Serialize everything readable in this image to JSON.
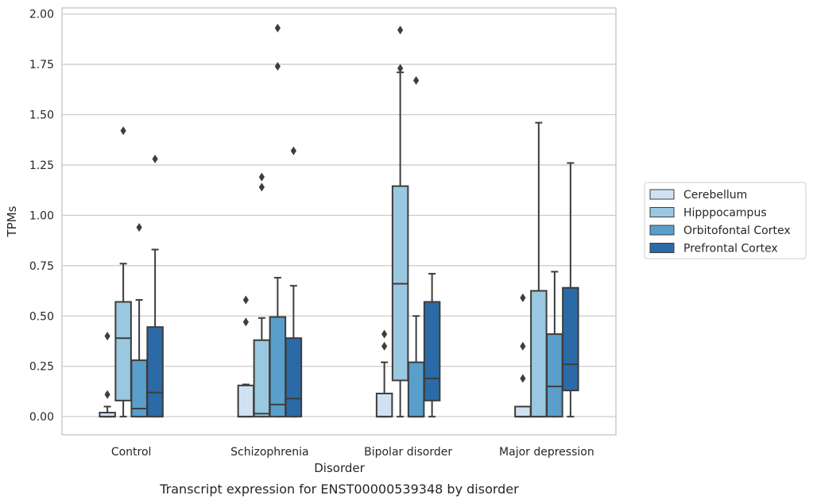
{
  "chart_data": {
    "type": "box",
    "xlabel": "Disorder",
    "ylabel": "TPMs",
    "caption": "Transcript expression for ENST00000539348 by disorder",
    "ylim": [
      -0.09,
      2.03
    ],
    "yticks": [
      "0.00",
      "0.25",
      "0.50",
      "0.75",
      "1.00",
      "1.25",
      "1.50",
      "1.75",
      "2.00"
    ],
    "grid": true,
    "legend_position": "right",
    "categories": [
      "Control",
      "Schizophrenia",
      "Bipolar disorder",
      "Major depression"
    ],
    "series": [
      {
        "name": "Cerebellum",
        "color": "#d0e1f2",
        "boxes": [
          {
            "min": 0.0,
            "q1": 0.0,
            "median": 0.0,
            "q3": 0.02,
            "max": 0.05,
            "outliers": [
              0.4,
              0.11
            ]
          },
          {
            "min": 0.0,
            "q1": 0.0,
            "median": 0.0,
            "q3": 0.155,
            "max": 0.16,
            "outliers": [
              0.58,
              0.47
            ]
          },
          {
            "min": 0.0,
            "q1": 0.0,
            "median": 0.0,
            "q3": 0.115,
            "max": 0.27,
            "outliers": [
              0.41,
              0.35
            ]
          },
          {
            "min": 0.0,
            "q1": 0.0,
            "median": 0.0,
            "q3": 0.05,
            "max": 0.05,
            "outliers": [
              0.59,
              0.35,
              0.19
            ]
          }
        ]
      },
      {
        "name": "Hipppocampus",
        "color": "#9ac8e0",
        "boxes": [
          {
            "min": 0.0,
            "q1": 0.08,
            "median": 0.39,
            "q3": 0.57,
            "max": 0.76,
            "outliers": [
              1.42
            ]
          },
          {
            "min": 0.0,
            "q1": 0.0,
            "median": 0.015,
            "q3": 0.38,
            "max": 0.49,
            "outliers": [
              1.19,
              1.14
            ]
          },
          {
            "min": 0.0,
            "q1": 0.18,
            "median": 0.66,
            "q3": 1.145,
            "max": 1.71,
            "outliers": [
              1.92,
              1.73
            ]
          },
          {
            "min": 0.0,
            "q1": 0.0,
            "median": 0.0,
            "q3": 0.625,
            "max": 1.46,
            "outliers": []
          }
        ]
      },
      {
        "name": "Orbitofontal Cortex",
        "color": "#5a9ecc",
        "boxes": [
          {
            "min": 0.0,
            "q1": 0.0,
            "median": 0.04,
            "q3": 0.28,
            "max": 0.58,
            "outliers": [
              0.94
            ]
          },
          {
            "min": 0.0,
            "q1": 0.0,
            "median": 0.06,
            "q3": 0.495,
            "max": 0.69,
            "outliers": [
              1.93,
              1.74
            ]
          },
          {
            "min": 0.0,
            "q1": 0.0,
            "median": 0.0,
            "q3": 0.27,
            "max": 0.5,
            "outliers": [
              1.67
            ]
          },
          {
            "min": 0.0,
            "q1": 0.0,
            "median": 0.15,
            "q3": 0.41,
            "max": 0.72,
            "outliers": []
          }
        ]
      },
      {
        "name": "Prefrontal Cortex",
        "color": "#2a6aa6",
        "boxes": [
          {
            "min": 0.0,
            "q1": 0.0,
            "median": 0.12,
            "q3": 0.445,
            "max": 0.83,
            "outliers": [
              1.28
            ]
          },
          {
            "min": 0.0,
            "q1": 0.0,
            "median": 0.09,
            "q3": 0.39,
            "max": 0.65,
            "outliers": [
              1.32
            ]
          },
          {
            "min": 0.0,
            "q1": 0.08,
            "median": 0.19,
            "q3": 0.57,
            "max": 0.71,
            "outliers": []
          },
          {
            "min": 0.0,
            "q1": 0.13,
            "median": 0.26,
            "q3": 0.64,
            "max": 1.26,
            "outliers": []
          }
        ]
      }
    ]
  }
}
